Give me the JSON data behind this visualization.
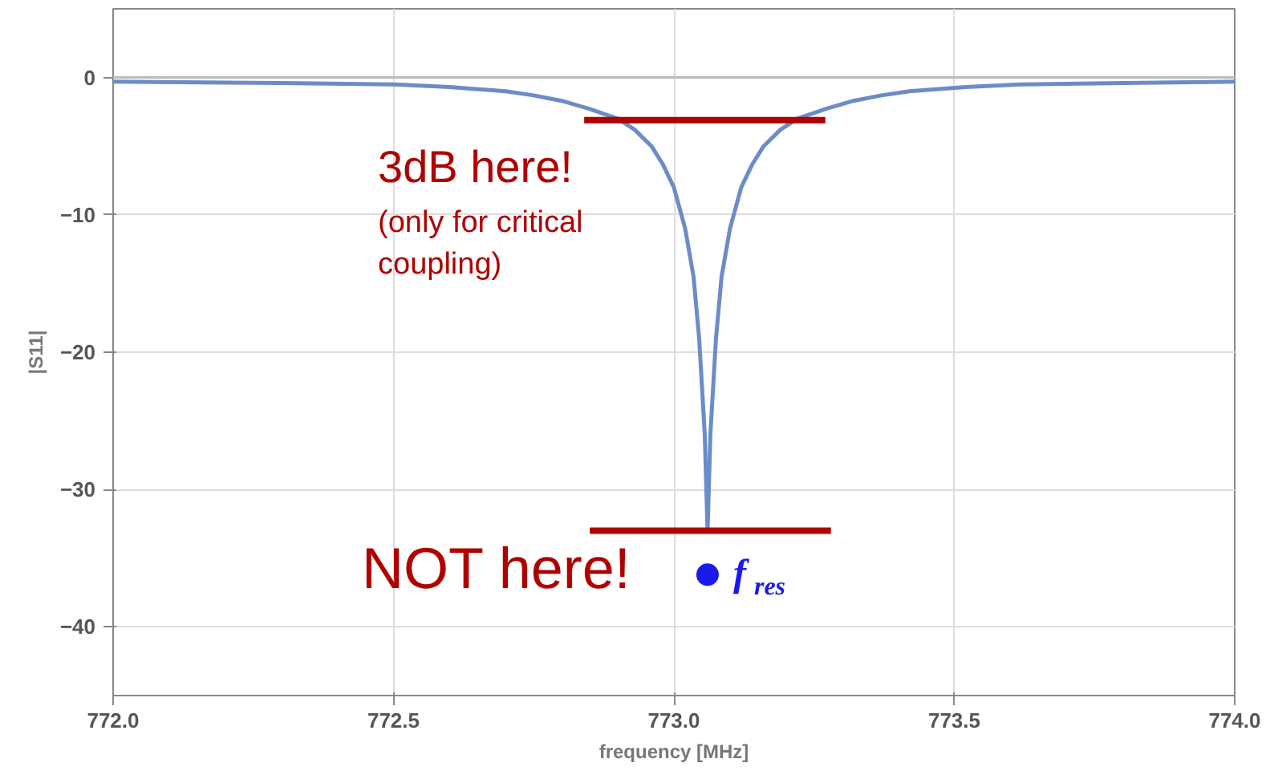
{
  "chart_data": {
    "type": "line",
    "xlabel": "frequency [MHz]",
    "ylabel": "|S11|",
    "xlim": [
      772.0,
      774.0
    ],
    "ylim": [
      -45,
      5
    ],
    "xticks": [
      {
        "value": 772.0,
        "label": "772.0"
      },
      {
        "value": 772.5,
        "label": "772.5"
      },
      {
        "value": 773.0,
        "label": "773.0"
      },
      {
        "value": 773.5,
        "label": "773.5"
      },
      {
        "value": 774.0,
        "label": "774.0"
      }
    ],
    "yticks": [
      0,
      -10,
      -20,
      -30,
      -40
    ],
    "grid": true,
    "ref_lines": [
      {
        "axis": "y",
        "value": 0,
        "color": "#bbbbbb"
      }
    ],
    "series": [
      {
        "color": "#6b8cc7",
        "x": [
          772.0,
          772.3,
          772.5,
          772.6,
          772.7,
          772.75,
          772.8,
          772.85,
          772.9,
          772.93,
          772.96,
          772.98,
          773.0,
          773.02,
          773.035,
          773.045,
          773.055,
          773.06,
          773.065,
          773.075,
          773.085,
          773.1,
          773.12,
          773.14,
          773.16,
          773.19,
          773.22,
          773.27,
          773.32,
          773.37,
          773.42,
          773.52,
          773.62,
          773.8,
          774.0
        ],
        "values": [
          -0.3,
          -0.4,
          -0.5,
          -0.7,
          -1.0,
          -1.3,
          -1.7,
          -2.3,
          -3.0,
          -3.8,
          -5.0,
          -6.3,
          -8.0,
          -11,
          -14.5,
          -19,
          -26,
          -33,
          -26,
          -19,
          -14.5,
          -11,
          -8.0,
          -6.3,
          -5.0,
          -3.8,
          -3.0,
          -2.3,
          -1.7,
          -1.3,
          -1.0,
          -0.7,
          -0.5,
          -0.4,
          -0.3
        ]
      },
      {
        "color": "#b00000",
        "x": [
          772.84,
          773.27
        ],
        "values": [
          -3.1,
          -3.1
        ]
      },
      {
        "color": "#b00000",
        "x": [
          772.85,
          773.28
        ],
        "values": [
          -33,
          -33
        ]
      },
      {
        "type": "scatter",
        "marker": "circle",
        "color": "#1a1aee",
        "x": [
          773.06
        ],
        "values": [
          -36.2
        ]
      }
    ],
    "annotations": [
      "3dB here!",
      "(only for critical coupling)",
      "NOT here!",
      {
        "text": "f$_{res}$",
        "x": 773.06,
        "y": -36.2
      }
    ]
  }
}
